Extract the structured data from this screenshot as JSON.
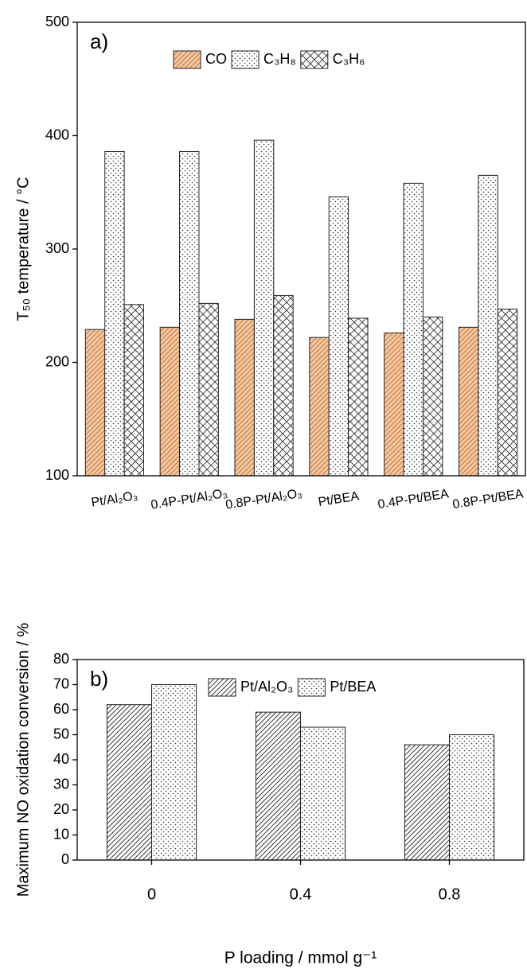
{
  "chart_data": [
    {
      "type": "bar",
      "panel_label": "a)",
      "y_label": "T₅₀ temperature / °C",
      "categories": [
        "Pt/Al₂O₃",
        "0.4P-Pt/Al₂O₃",
        "0.8P-Pt/Al₂O₃",
        "Pt/BEA",
        "0.4P-Pt/BEA",
        "0.8P-Pt/BEA"
      ],
      "category_colors": [
        "#000000",
        "#000000",
        "#000000",
        "#1a1adc",
        "#1a1adc",
        "#1a1adc"
      ],
      "series": [
        {
          "name": "CO",
          "color": "#f4c7a0",
          "pattern": "hatch",
          "pattern_color": "#b8703a",
          "values": [
            229,
            231,
            238,
            222,
            226,
            231
          ]
        },
        {
          "name": "C₃H₈",
          "color": "#ffffff",
          "pattern": "dots",
          "pattern_color": "#333333",
          "values": [
            386,
            386,
            396,
            346,
            358,
            365
          ]
        },
        {
          "name": "C₃H₆",
          "color": "#ffffff",
          "pattern": "cross",
          "pattern_color": "#333333",
          "values": [
            251,
            252,
            259,
            239,
            240,
            247
          ]
        }
      ],
      "ylim": [
        100,
        500
      ],
      "yticks": [
        100,
        200,
        300,
        400,
        500
      ],
      "legend": "top"
    },
    {
      "type": "bar",
      "panel_label": "b)",
      "y_label": "Maximum NO oxidation conversion / %",
      "x_label": "P loading / mmol g⁻¹",
      "categories": [
        "0",
        "0.4",
        "0.8"
      ],
      "series": [
        {
          "name": "Pt/Al₂O₃",
          "color": "#ffffff",
          "pattern": "hatch",
          "pattern_color": "#222222",
          "values": [
            62,
            59,
            46
          ]
        },
        {
          "name": "Pt/BEA",
          "color": "#ffffff",
          "pattern": "dots",
          "pattern_color": "#333333",
          "values": [
            70,
            53,
            50
          ]
        }
      ],
      "ylim": [
        0,
        80
      ],
      "yticks": [
        0,
        10,
        20,
        30,
        40,
        50,
        60,
        70,
        80
      ],
      "legend": "top"
    }
  ]
}
